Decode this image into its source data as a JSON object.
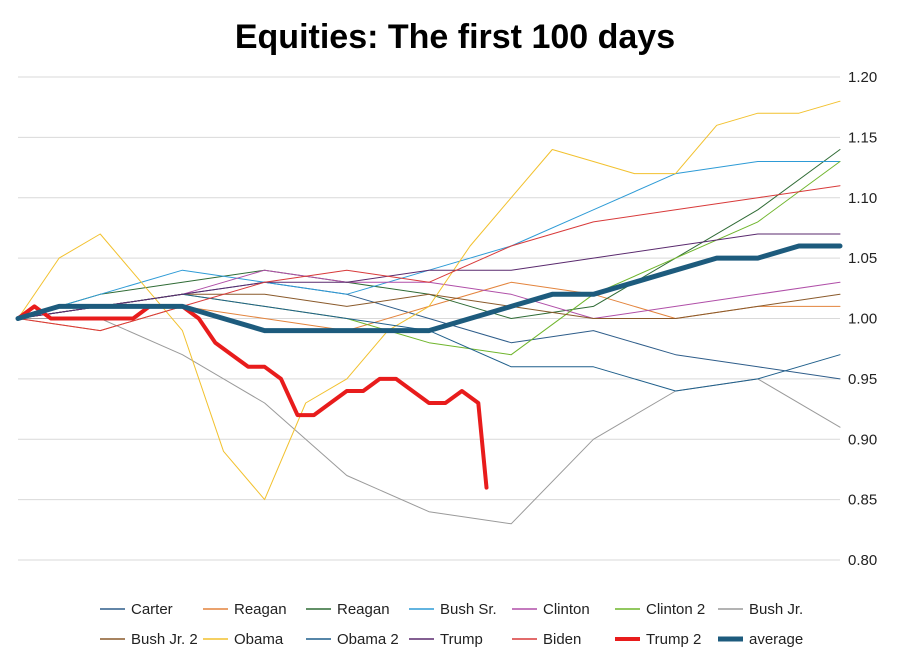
{
  "chart_data": {
    "type": "line",
    "title": "Equities: The first 100 days",
    "xlabel": "",
    "ylabel": "",
    "ylim": [
      0.8,
      1.2
    ],
    "xlim": [
      0,
      100
    ],
    "yticks": [
      "1.20",
      "1.15",
      "1.10",
      "1.05",
      "1.00",
      "0.95",
      "0.90",
      "0.85",
      "0.80"
    ],
    "grid": true,
    "legend_position": "bottom",
    "series": [
      {
        "name": "Carter",
        "color": "#2e5d8a",
        "width": 1,
        "x": [
          0,
          10,
          20,
          30,
          40,
          50,
          60,
          70,
          80,
          90,
          100
        ],
        "values": [
          1.0,
          1.01,
          1.02,
          1.03,
          1.02,
          1.0,
          0.98,
          0.99,
          0.97,
          0.96,
          0.95
        ]
      },
      {
        "name": "Reagan",
        "color": "#e3843d",
        "width": 1,
        "x": [
          0,
          10,
          20,
          30,
          40,
          50,
          60,
          70,
          80,
          90,
          100
        ],
        "values": [
          1.0,
          0.99,
          1.01,
          1.0,
          0.99,
          1.01,
          1.03,
          1.02,
          1.0,
          1.01,
          1.01
        ]
      },
      {
        "name": "Reagan",
        "color": "#2f6b35",
        "width": 1,
        "x": [
          0,
          10,
          20,
          30,
          40,
          50,
          60,
          70,
          80,
          90,
          100
        ],
        "values": [
          1.0,
          1.02,
          1.03,
          1.04,
          1.03,
          1.02,
          1.0,
          1.01,
          1.05,
          1.09,
          1.14
        ]
      },
      {
        "name": "Bush Sr.",
        "color": "#2e9bd6",
        "width": 1,
        "x": [
          0,
          10,
          20,
          30,
          40,
          50,
          60,
          70,
          80,
          90,
          100
        ],
        "values": [
          1.0,
          1.02,
          1.04,
          1.03,
          1.02,
          1.04,
          1.06,
          1.09,
          1.12,
          1.13,
          1.13
        ]
      },
      {
        "name": "Clinton",
        "color": "#b04fa8",
        "width": 1,
        "x": [
          0,
          10,
          20,
          30,
          40,
          50,
          60,
          70,
          80,
          90,
          100
        ],
        "values": [
          1.0,
          1.01,
          1.02,
          1.04,
          1.03,
          1.03,
          1.02,
          1.0,
          1.01,
          1.02,
          1.03
        ]
      },
      {
        "name": "Clinton 2",
        "color": "#6fb52c",
        "width": 1,
        "x": [
          0,
          10,
          20,
          30,
          40,
          50,
          60,
          70,
          80,
          90,
          100
        ],
        "values": [
          1.0,
          1.01,
          1.02,
          1.01,
          1.0,
          0.98,
          0.97,
          1.02,
          1.05,
          1.08,
          1.13
        ]
      },
      {
        "name": "Bush Jr.",
        "color": "#9a9a9a",
        "width": 1,
        "x": [
          0,
          10,
          20,
          30,
          40,
          50,
          60,
          70,
          80,
          90,
          100
        ],
        "values": [
          1.0,
          1.0,
          0.97,
          0.93,
          0.87,
          0.84,
          0.83,
          0.9,
          0.94,
          0.95,
          0.91
        ]
      },
      {
        "name": "Bush Jr. 2",
        "color": "#8a5a2b",
        "width": 1,
        "x": [
          0,
          10,
          20,
          30,
          40,
          50,
          60,
          70,
          80,
          90,
          100
        ],
        "values": [
          1.0,
          1.01,
          1.02,
          1.02,
          1.01,
          1.02,
          1.01,
          1.0,
          1.0,
          1.01,
          1.02
        ]
      },
      {
        "name": "Obama",
        "color": "#f2c12e",
        "width": 1,
        "x": [
          0,
          5,
          10,
          20,
          25,
          30,
          35,
          40,
          45,
          50,
          55,
          60,
          65,
          70,
          75,
          80,
          85,
          90,
          95,
          100
        ],
        "values": [
          1.0,
          1.05,
          1.07,
          0.99,
          0.89,
          0.85,
          0.93,
          0.95,
          0.99,
          1.01,
          1.06,
          1.1,
          1.14,
          1.13,
          1.12,
          1.12,
          1.16,
          1.17,
          1.17,
          1.18
        ]
      },
      {
        "name": "Obama 2",
        "color": "#1f5f8b",
        "width": 1,
        "x": [
          0,
          10,
          20,
          30,
          40,
          50,
          60,
          70,
          80,
          90,
          100
        ],
        "values": [
          1.0,
          1.01,
          1.02,
          1.01,
          1.0,
          0.99,
          0.96,
          0.96,
          0.94,
          0.95,
          0.97
        ]
      },
      {
        "name": "Trump",
        "color": "#5a2a6e",
        "width": 1,
        "x": [
          0,
          10,
          20,
          30,
          40,
          50,
          60,
          70,
          80,
          90,
          100
        ],
        "values": [
          1.0,
          1.01,
          1.02,
          1.03,
          1.03,
          1.04,
          1.04,
          1.05,
          1.06,
          1.07,
          1.07
        ]
      },
      {
        "name": "Biden",
        "color": "#d83a3a",
        "width": 1,
        "x": [
          0,
          10,
          20,
          30,
          40,
          50,
          60,
          70,
          80,
          90,
          100
        ],
        "values": [
          1.0,
          0.99,
          1.01,
          1.03,
          1.04,
          1.03,
          1.06,
          1.08,
          1.09,
          1.1,
          1.11
        ]
      },
      {
        "name": "Trump 2",
        "color": "#e81c1c",
        "width": 4,
        "x": [
          0,
          2,
          4,
          6,
          8,
          10,
          12,
          14,
          16,
          18,
          20,
          22,
          24,
          26,
          28,
          30,
          32,
          34,
          36,
          38,
          40,
          42,
          44,
          46,
          48,
          50,
          52,
          54,
          56,
          57
        ],
        "values": [
          1.0,
          1.01,
          1.0,
          1.0,
          1.0,
          1.0,
          1.0,
          1.0,
          1.01,
          1.01,
          1.01,
          1.0,
          0.98,
          0.97,
          0.96,
          0.96,
          0.95,
          0.92,
          0.92,
          0.93,
          0.94,
          0.94,
          0.95,
          0.95,
          0.94,
          0.93,
          0.93,
          0.94,
          0.93,
          0.86
        ]
      },
      {
        "name": "average",
        "color": "#1d5b7d",
        "width": 5,
        "x": [
          0,
          5,
          10,
          15,
          20,
          25,
          30,
          35,
          40,
          45,
          50,
          55,
          60,
          65,
          70,
          75,
          80,
          85,
          90,
          95,
          100
        ],
        "values": [
          1.0,
          1.01,
          1.01,
          1.01,
          1.01,
          1.0,
          0.99,
          0.99,
          0.99,
          0.99,
          0.99,
          1.0,
          1.01,
          1.02,
          1.02,
          1.03,
          1.04,
          1.05,
          1.05,
          1.06,
          1.06
        ]
      }
    ]
  }
}
